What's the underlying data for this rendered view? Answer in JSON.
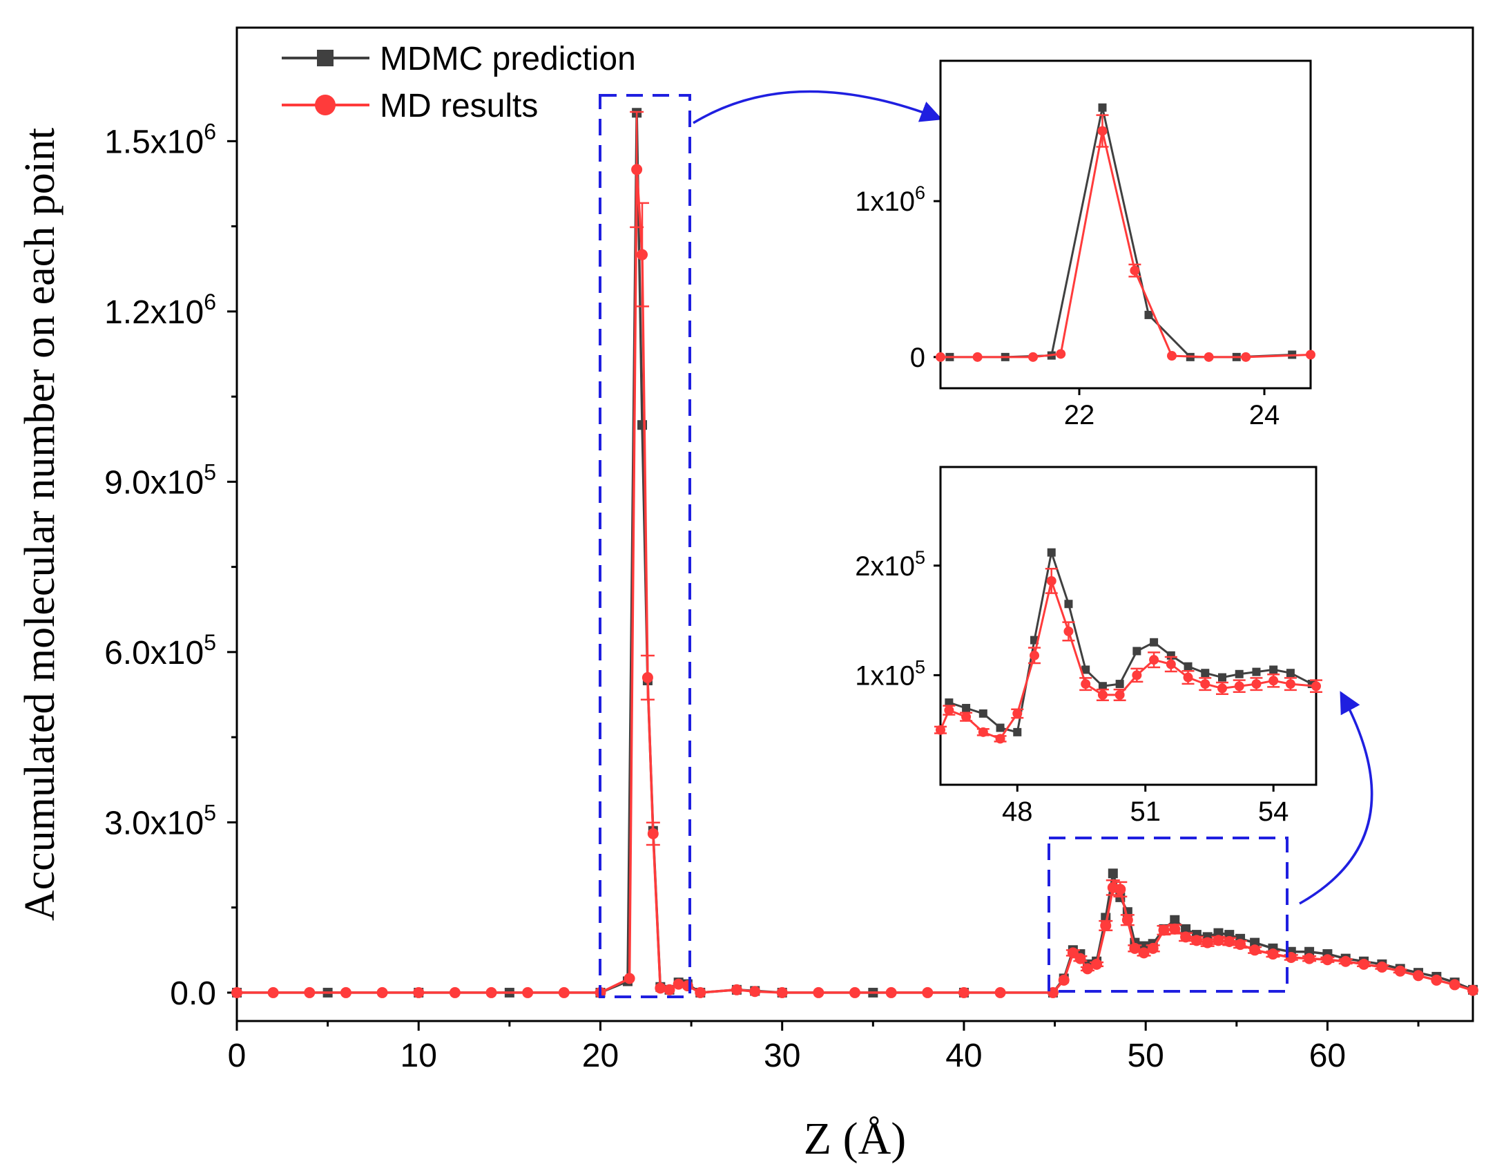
{
  "chart_data": [
    {
      "id": "main",
      "type": "line",
      "xlabel": "Z (Å)",
      "ylabel": "Accumulated molecular number on each point",
      "xlim": [
        0,
        68
      ],
      "ylim": [
        -50000,
        1700000
      ],
      "xticks": [
        0,
        10,
        20,
        30,
        40,
        50,
        60
      ],
      "xtick_labels": [
        "0",
        "10",
        "20",
        "30",
        "40",
        "50",
        "60"
      ],
      "yticks": [
        0,
        300000,
        600000,
        900000,
        1200000,
        1500000
      ],
      "ytick_labels": [
        {
          "mant": "0.0",
          "exp": ""
        },
        {
          "mant": "3.0x10",
          "exp": "5"
        },
        {
          "mant": "6.0x10",
          "exp": "5"
        },
        {
          "mant": "9.0x10",
          "exp": "5"
        },
        {
          "mant": "1.2x10",
          "exp": "6"
        },
        {
          "mant": "1.5x10",
          "exp": "6"
        }
      ],
      "legend": {
        "position": "top-left",
        "entries": [
          {
            "label": "MDMC prediction",
            "color": "#404040",
            "marker": "square"
          },
          {
            "label": "MD results",
            "color": "#ff3b3b",
            "marker": "circle"
          }
        ]
      },
      "series": [
        {
          "name": "MDMC prediction",
          "color": "#404040",
          "x": [
            0,
            5,
            10,
            15,
            20,
            21.5,
            22.0,
            22.3,
            22.6,
            22.9,
            23.3,
            23.8,
            24.3,
            24.8,
            25.5,
            27.5,
            28.5,
            30,
            35,
            40,
            44.9,
            45.5,
            46.0,
            46.4,
            46.8,
            47.3,
            47.8,
            48.2,
            48.6,
            49.0,
            49.4,
            49.9,
            50.4,
            51.0,
            51.6,
            52.2,
            52.8,
            53.4,
            54.0,
            54.6,
            55.2,
            56,
            57,
            58,
            59,
            60,
            61,
            62,
            63,
            64,
            65,
            66,
            67,
            68
          ],
          "y": [
            0,
            0,
            0,
            0,
            0,
            20000,
            1550000,
            1000000,
            550000,
            285000,
            10000,
            5000,
            18000,
            15000,
            0,
            5000,
            3000,
            0,
            0,
            0,
            0,
            25000,
            75000,
            68000,
            50000,
            55000,
            132000,
            210000,
            168000,
            142000,
            88000,
            82000,
            86000,
            112000,
            128000,
            112000,
            102000,
            98000,
            105000,
            102000,
            95000,
            88000,
            78000,
            72000,
            72000,
            68000,
            60000,
            55000,
            50000,
            42000,
            35000,
            28000,
            18000,
            5000
          ]
        },
        {
          "name": "MD results",
          "color": "#ff3b3b",
          "x": [
            0,
            2,
            4,
            6,
            8,
            10,
            12,
            14,
            16,
            18,
            20,
            21.6,
            22.0,
            22.3,
            22.6,
            22.9,
            23.3,
            23.8,
            24.3,
            24.8,
            25.5,
            27.5,
            28.5,
            30,
            32,
            34,
            36,
            38,
            40,
            42,
            44.9,
            45.5,
            46.0,
            46.4,
            46.8,
            47.3,
            47.8,
            48.2,
            48.6,
            49.0,
            49.4,
            49.9,
            50.4,
            51.0,
            51.6,
            52.2,
            52.8,
            53.4,
            54.0,
            54.6,
            55.2,
            56,
            57,
            58,
            59,
            60,
            61,
            62,
            63,
            64,
            65,
            66,
            67,
            68
          ],
          "y": [
            0,
            0,
            0,
            0,
            0,
            0,
            0,
            0,
            0,
            0,
            0,
            25000,
            1450000,
            1300000,
            555000,
            280000,
            8000,
            5000,
            15000,
            12000,
            0,
            5000,
            2000,
            0,
            0,
            0,
            0,
            0,
            0,
            0,
            0,
            22000,
            70000,
            60000,
            42000,
            50000,
            118000,
            185000,
            182000,
            128000,
            78000,
            70000,
            78000,
            110000,
            112000,
            98000,
            92000,
            88000,
            92000,
            90000,
            85000,
            75000,
            68000,
            62000,
            60000,
            58000,
            55000,
            50000,
            45000,
            38000,
            30000,
            22000,
            14000,
            4000
          ]
        }
      ]
    },
    {
      "id": "inset1",
      "type": "line",
      "xlim": [
        20.5,
        24.5
      ],
      "ylim": [
        -200000,
        1900000
      ],
      "xticks": [
        22,
        24
      ],
      "xtick_labels": [
        "22",
        "24"
      ],
      "yticks": [
        0,
        1000000
      ],
      "ytick_labels": [
        {
          "mant": "0",
          "exp": ""
        },
        {
          "mant": "1x10",
          "exp": "6"
        }
      ],
      "series": [
        {
          "name": "MDMC prediction",
          "color": "#404040",
          "x": [
            20.6,
            21.2,
            21.7,
            22.25,
            22.75,
            23.2,
            23.7,
            24.3
          ],
          "y": [
            0,
            0,
            10000,
            1600000,
            270000,
            0,
            0,
            15000
          ]
        },
        {
          "name": "MD results",
          "color": "#ff3b3b",
          "x": [
            20.5,
            20.9,
            21.5,
            21.8,
            22.25,
            22.6,
            23.0,
            23.4,
            23.8,
            24.5
          ],
          "y": [
            0,
            0,
            0,
            20000,
            1450000,
            555000,
            8000,
            0,
            0,
            15000
          ]
        }
      ]
    },
    {
      "id": "inset2",
      "type": "line",
      "xlim": [
        46.2,
        55.0
      ],
      "ylim": [
        0,
        290000
      ],
      "xticks": [
        48,
        51,
        54
      ],
      "xtick_labels": [
        "48",
        "51",
        "54"
      ],
      "yticks": [
        100000,
        200000
      ],
      "ytick_labels": [
        {
          "mant": "1x10",
          "exp": "5"
        },
        {
          "mant": "2x10",
          "exp": "5"
        }
      ],
      "series": [
        {
          "name": "MDMC prediction",
          "color": "#404040",
          "x": [
            46.4,
            46.8,
            47.2,
            47.6,
            48.0,
            48.4,
            48.8,
            49.2,
            49.6,
            50.0,
            50.4,
            50.8,
            51.2,
            51.6,
            52.0,
            52.4,
            52.8,
            53.2,
            53.6,
            54.0,
            54.4,
            54.9
          ],
          "y": [
            75000,
            70000,
            65000,
            52000,
            48000,
            132000,
            212000,
            165000,
            105000,
            90000,
            92000,
            122000,
            130000,
            118000,
            108000,
            102000,
            98000,
            101000,
            103000,
            105000,
            102000,
            92000
          ]
        },
        {
          "name": "MD results",
          "color": "#ff3b3b",
          "x": [
            46.2,
            46.4,
            46.8,
            47.2,
            47.6,
            48.0,
            48.4,
            48.8,
            49.2,
            49.6,
            50.0,
            50.4,
            50.8,
            51.2,
            51.6,
            52.0,
            52.4,
            52.8,
            53.2,
            53.6,
            54.0,
            54.4,
            55.0
          ],
          "y": [
            50000,
            68000,
            62000,
            48000,
            42000,
            65000,
            118000,
            186000,
            140000,
            92000,
            82000,
            82000,
            100000,
            114000,
            110000,
            98000,
            92000,
            88000,
            90000,
            92000,
            95000,
            92000,
            90000
          ]
        }
      ]
    }
  ]
}
